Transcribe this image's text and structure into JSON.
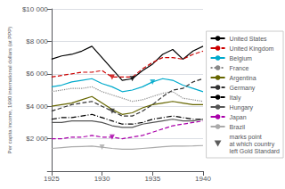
{
  "chart_data": {
    "type": "line",
    "ylabel": "Per capita income, 1990 international dollars (at PPP)",
    "x": [
      1925,
      1926,
      1927,
      1928,
      1929,
      1930,
      1931,
      1932,
      1933,
      1934,
      1935,
      1936,
      1937,
      1938,
      1939,
      1940
    ],
    "xlim": [
      1925,
      1940
    ],
    "xticks": [
      1925,
      1930,
      1935,
      1940
    ],
    "ylim": [
      0,
      10000
    ],
    "yticks": [
      {
        "value": 0,
        "label": null
      },
      {
        "value": 2000,
        "label": "$2 000"
      },
      {
        "value": 4000,
        "label": "$4 000"
      },
      {
        "value": 6000,
        "label": "$6 000"
      },
      {
        "value": 8000,
        "label": "$8 000"
      },
      {
        "value": 10000,
        "label": "$10 000"
      }
    ],
    "grid": true,
    "legend": "right",
    "series": [
      {
        "name": "United States",
        "color": "#000000",
        "line_style": "solid",
        "values": [
          6900,
          7100,
          7200,
          7400,
          7700,
          7000,
          6300,
          5600,
          5700,
          6200,
          6600,
          7200,
          7500,
          6900,
          7400,
          7700
        ]
      },
      {
        "name": "United Kingdom",
        "color": "#cc0000",
        "line_style": "dashed",
        "values": [
          5800,
          5900,
          6000,
          6100,
          6100,
          6200,
          5800,
          5800,
          5800,
          6300,
          6700,
          7000,
          7000,
          6900,
          7200,
          7400
        ]
      },
      {
        "name": "Belgium",
        "color": "#00aacc",
        "line_style": "solid",
        "values": [
          5200,
          5300,
          5500,
          5600,
          5700,
          5400,
          5200,
          4900,
          5000,
          5200,
          5500,
          5700,
          5600,
          5300,
          5100,
          4900
        ]
      },
      {
        "name": "France",
        "color": "#888888",
        "line_style": "dotted",
        "values": [
          4900,
          5000,
          5100,
          5100,
          5200,
          4900,
          4700,
          4500,
          4300,
          4400,
          4600,
          4800,
          4900,
          4500,
          4400,
          4300
        ]
      },
      {
        "name": "Argentina",
        "color": "#666600",
        "line_style": "solid",
        "values": [
          4000,
          4100,
          4200,
          4400,
          4600,
          4200,
          3800,
          3500,
          3600,
          3900,
          4100,
          4200,
          4300,
          4200,
          4100,
          4100
        ]
      },
      {
        "name": "Germany",
        "color": "#333333",
        "line_style": "dashed",
        "values": [
          3700,
          3900,
          4100,
          4200,
          4300,
          4000,
          3700,
          3400,
          3400,
          3700,
          4100,
          4600,
          5000,
          5100,
          5500,
          5700
        ]
      },
      {
        "name": "Italy",
        "color": "#000000",
        "line_style": "dashdot",
        "values": [
          3200,
          3300,
          3300,
          3400,
          3500,
          3300,
          3100,
          2900,
          2900,
          3000,
          3200,
          3300,
          3400,
          3300,
          3200,
          3200
        ]
      },
      {
        "name": "Hungary",
        "color": "#555555",
        "line_style": "solid",
        "values": [
          3000,
          3000,
          3100,
          3100,
          3100,
          3000,
          2800,
          2700,
          2700,
          2900,
          3000,
          3100,
          3200,
          3100,
          3100,
          3200
        ]
      },
      {
        "name": "Japan",
        "color": "#aa00aa",
        "line_style": "dashed",
        "values": [
          2000,
          2000,
          2100,
          2100,
          2200,
          2100,
          2100,
          2000,
          2100,
          2200,
          2400,
          2600,
          2800,
          2900,
          3000,
          3100
        ]
      },
      {
        "name": "Brazil",
        "color": "#aaaaaa",
        "line_style": "solid",
        "values": [
          1400,
          1450,
          1500,
          1520,
          1540,
          1480,
          1400,
          1350,
          1350,
          1400,
          1450,
          1500,
          1550,
          1550,
          1560,
          1580
        ]
      },
      {
        "name": "marks point\nat which country\nleft Gold Standard",
        "type": "scatter",
        "marker": "triangle-down",
        "color": "#333333",
        "x": [
          1933,
          1931,
          1935,
          1931,
          1931,
          1930
        ],
        "values": [
          5700,
          5800,
          5500,
          3700,
          2100,
          1480
        ],
        "colors": [
          "#000000",
          "#cc0000",
          "#00aacc",
          "#333333",
          "#aa00aa",
          "#aaaaaa"
        ]
      }
    ]
  }
}
